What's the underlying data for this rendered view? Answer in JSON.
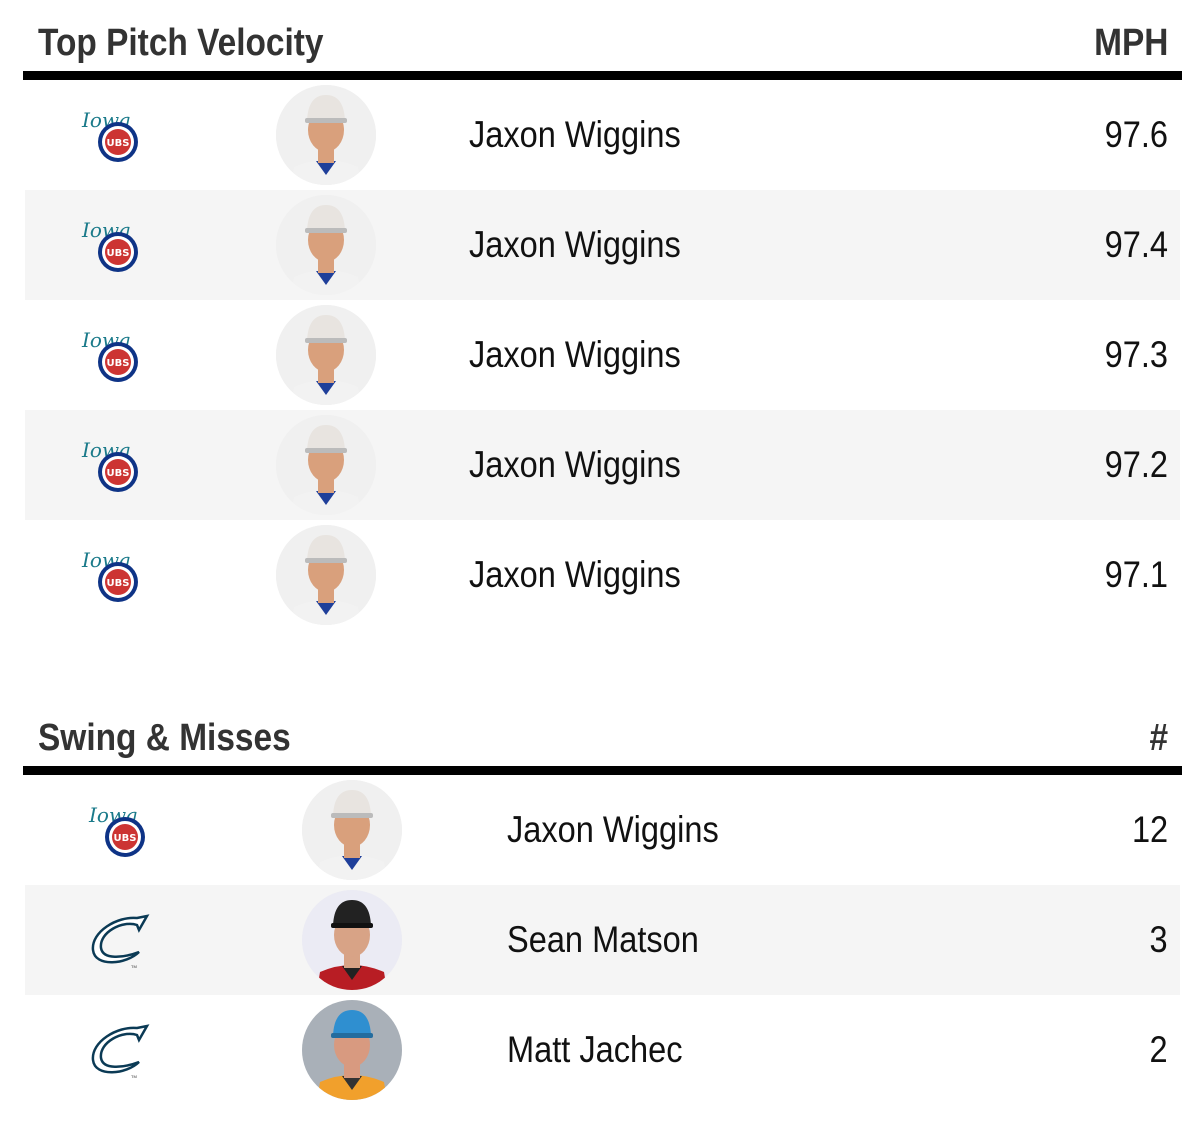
{
  "velocity": {
    "title": "Top Pitch Velocity",
    "unit": "MPH",
    "rows": [
      {
        "team": "iowa-cubs",
        "name": "Jaxon Wiggins",
        "value": "97.6"
      },
      {
        "team": "iowa-cubs",
        "name": "Jaxon Wiggins",
        "value": "97.4"
      },
      {
        "team": "iowa-cubs",
        "name": "Jaxon Wiggins",
        "value": "97.3"
      },
      {
        "team": "iowa-cubs",
        "name": "Jaxon Wiggins",
        "value": "97.2"
      },
      {
        "team": "iowa-cubs",
        "name": "Jaxon Wiggins",
        "value": "97.1"
      }
    ]
  },
  "swings": {
    "title": "Swing & Misses",
    "unit": "#",
    "rows": [
      {
        "team": "iowa-cubs",
        "name": "Jaxon Wiggins",
        "value": "12"
      },
      {
        "team": "columbus-clippers",
        "name": "Sean Matson",
        "value": "3"
      },
      {
        "team": "columbus-clippers",
        "name": "Matt Jachec",
        "value": "2"
      }
    ]
  },
  "colors": {
    "rule": "#000000",
    "alt_row": "#f5f5f5",
    "title": "#333333"
  }
}
